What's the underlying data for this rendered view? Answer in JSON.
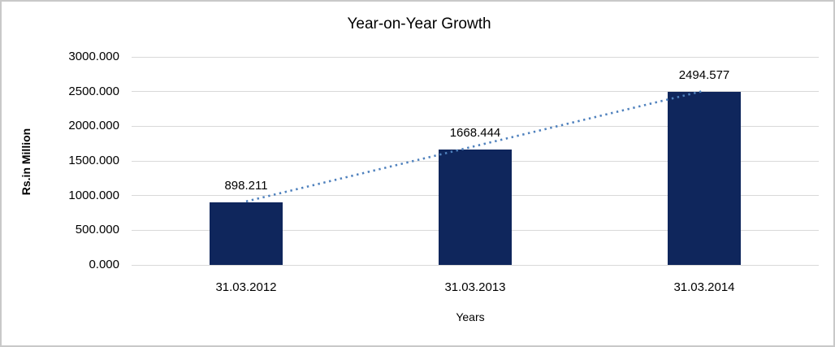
{
  "title": "Year-on-Year Growth",
  "frame": {
    "border_color": "#c9c9c9",
    "background": "#ffffff"
  },
  "chart_data": {
    "type": "bar",
    "title": "Year-on-Year Growth",
    "categories": [
      "31.03.2012",
      "31.03.2013",
      "31.03.2014"
    ],
    "values": [
      898.211,
      1668.444,
      2494.577
    ],
    "value_labels": [
      "898.211",
      "1668.444",
      "2494.577"
    ],
    "xlabel": "Years",
    "ylabel": "Rs.in Million",
    "ylim": [
      0,
      3000
    ],
    "ytick_values": [
      0,
      500,
      1000,
      1500,
      2000,
      2500,
      3000
    ],
    "ytick_labels": [
      "0.000",
      "500.000",
      "1000.000",
      "1500.000",
      "2000.000",
      "2500.000",
      "3000.000"
    ],
    "grid": "horizontal",
    "gridline_color": "#d9d9d9",
    "bar_color": "#0f265c",
    "text_color": "#000000",
    "legend": "none",
    "trendline": {
      "style": "dotted",
      "color": "#4f81bd",
      "from_category": "31.03.2012",
      "to_category": "31.03.2014"
    }
  }
}
